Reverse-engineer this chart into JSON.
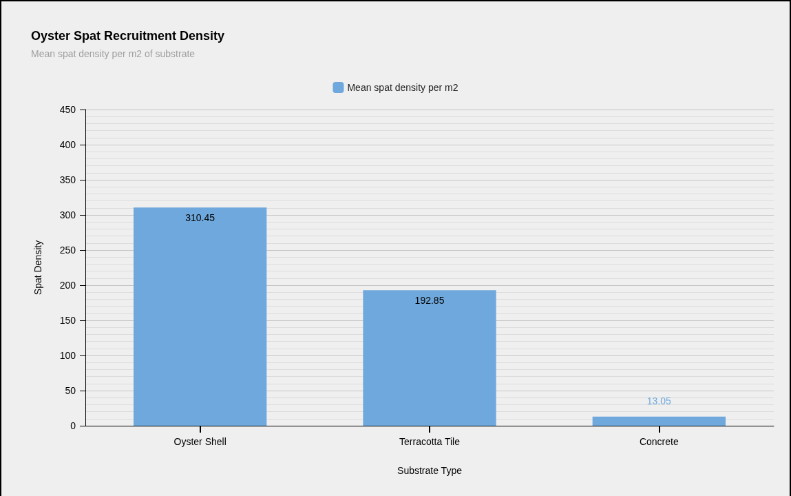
{
  "chart_data": {
    "type": "bar",
    "title": "Oyster Spat Recruitment Density",
    "subtitle": "Mean spat density per m2 of substrate",
    "xlabel": "Substrate Type",
    "ylabel": "Spat Density",
    "categories": [
      "Oyster Shell",
      "Terracotta Tile",
      "Concrete"
    ],
    "series": [
      {
        "name": "Mean spat density per m2",
        "color": "#6fa8dc",
        "values": [
          310.45,
          192.85,
          13.05
        ]
      }
    ],
    "ylim": [
      0,
      450
    ],
    "yticks": [
      0,
      50,
      100,
      150,
      200,
      250,
      300,
      350,
      400,
      450
    ],
    "grid": true,
    "legend": "top",
    "data_labels": true
  }
}
